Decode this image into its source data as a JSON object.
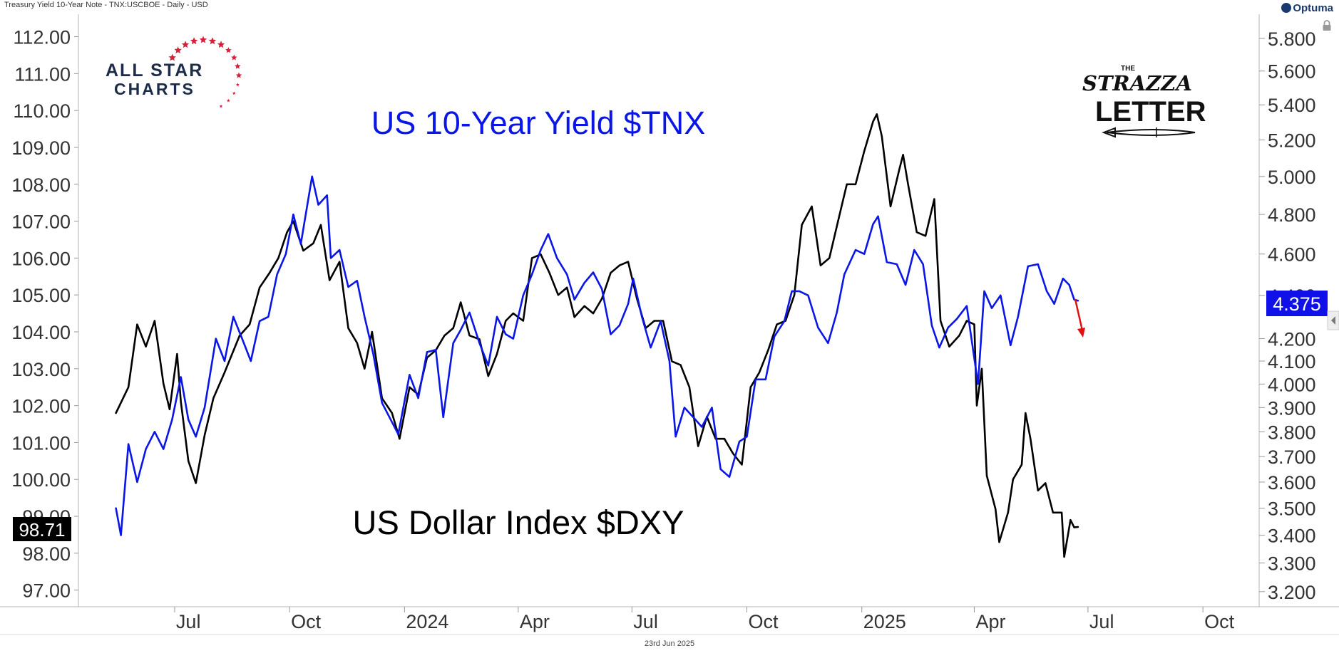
{
  "header": {
    "title": "Treasury Yield 10-Year Note - TNX:USCBOE - Daily - USD",
    "brand": "Optuma"
  },
  "footer": {
    "date": "23rd Jun 2025"
  },
  "logos": {
    "allstar": {
      "line1": "ALL STAR",
      "line2": "CHARTS"
    },
    "strazza": {
      "small": "THE",
      "line1": "STRAZZA",
      "line2": "LETTER"
    }
  },
  "icons": [
    "lock-icon",
    "star-icon",
    "arrow-down-icon",
    "pen-icon",
    "collapse-arrow-icon"
  ],
  "chart_data": {
    "type": "line",
    "annotations": [
      "US 10-Year Yield $TNX",
      "US Dollar Index $DXY"
    ],
    "x_ticks": [
      "Jul",
      "Oct",
      "2024",
      "Apr",
      "Jul",
      "Oct",
      "2025",
      "Apr",
      "Jul",
      "Oct"
    ],
    "x_tick_dates": [
      "2023-07-01",
      "2023-10-01",
      "2024-01-01",
      "2024-04-01",
      "2024-07-01",
      "2024-10-01",
      "2025-01-01",
      "2025-04-01",
      "2025-07-01",
      "2025-10-01"
    ],
    "x_range": [
      "2023-04-15",
      "2025-11-15"
    ],
    "y_left": {
      "ticks": [
        "112.00",
        "111.00",
        "110.00",
        "109.00",
        "108.00",
        "107.00",
        "106.00",
        "105.00",
        "104.00",
        "103.00",
        "102.00",
        "101.00",
        "100.00",
        "99.00",
        "98.00",
        "97.00"
      ],
      "range": [
        96.8,
        112.3
      ],
      "last_value_label": "98.71",
      "last_value": 98.71
    },
    "y_right": {
      "scale": "log",
      "ticks": [
        "5.800",
        "5.600",
        "5.400",
        "5.200",
        "5.000",
        "4.800",
        "4.600",
        "4.400",
        "4.200",
        "4.100",
        "4.000",
        "3.900",
        "3.800",
        "3.700",
        "3.600",
        "3.500",
        "3.400",
        "3.300",
        "3.200"
      ],
      "range": [
        3.18,
        5.88
      ],
      "last_value_label": "4.375",
      "last_value": 4.375
    },
    "series": [
      {
        "name": "US Dollar Index $DXY",
        "axis": "left",
        "color": "#000000",
        "points": [
          [
            "2023-05-15",
            101.8
          ],
          [
            "2023-05-25",
            102.5
          ],
          [
            "2023-06-01",
            104.2
          ],
          [
            "2023-06-08",
            103.6
          ],
          [
            "2023-06-15",
            104.3
          ],
          [
            "2023-06-22",
            102.6
          ],
          [
            "2023-06-27",
            101.9
          ],
          [
            "2023-07-03",
            103.4
          ],
          [
            "2023-07-06",
            102.1
          ],
          [
            "2023-07-12",
            100.5
          ],
          [
            "2023-07-18",
            99.9
          ],
          [
            "2023-07-25",
            101.2
          ],
          [
            "2023-08-01",
            102.2
          ],
          [
            "2023-08-10",
            102.9
          ],
          [
            "2023-08-22",
            103.9
          ],
          [
            "2023-08-30",
            104.2
          ],
          [
            "2023-09-07",
            105.2
          ],
          [
            "2023-09-15",
            105.6
          ],
          [
            "2023-09-22",
            106.0
          ],
          [
            "2023-09-29",
            106.7
          ],
          [
            "2023-10-04",
            107.0
          ],
          [
            "2023-10-12",
            106.2
          ],
          [
            "2023-10-20",
            106.4
          ],
          [
            "2023-10-26",
            106.9
          ],
          [
            "2023-11-02",
            105.4
          ],
          [
            "2023-11-10",
            105.9
          ],
          [
            "2023-11-17",
            104.1
          ],
          [
            "2023-11-24",
            103.7
          ],
          [
            "2023-11-30",
            103.0
          ],
          [
            "2023-12-06",
            104.0
          ],
          [
            "2023-12-14",
            102.2
          ],
          [
            "2023-12-22",
            101.8
          ],
          [
            "2023-12-28",
            101.1
          ],
          [
            "2024-01-05",
            102.5
          ],
          [
            "2024-01-12",
            102.3
          ],
          [
            "2024-01-19",
            103.3
          ],
          [
            "2024-01-26",
            103.5
          ],
          [
            "2024-02-02",
            103.9
          ],
          [
            "2024-02-09",
            104.1
          ],
          [
            "2024-02-15",
            104.8
          ],
          [
            "2024-02-22",
            103.9
          ],
          [
            "2024-03-01",
            103.8
          ],
          [
            "2024-03-08",
            102.8
          ],
          [
            "2024-03-15",
            103.4
          ],
          [
            "2024-03-22",
            104.3
          ],
          [
            "2024-03-28",
            104.5
          ],
          [
            "2024-04-05",
            104.3
          ],
          [
            "2024-04-12",
            106.0
          ],
          [
            "2024-04-19",
            106.1
          ],
          [
            "2024-04-26",
            105.6
          ],
          [
            "2024-05-03",
            105.0
          ],
          [
            "2024-05-10",
            105.2
          ],
          [
            "2024-05-16",
            104.4
          ],
          [
            "2024-05-24",
            104.7
          ],
          [
            "2024-05-31",
            104.5
          ],
          [
            "2024-06-07",
            104.9
          ],
          [
            "2024-06-14",
            105.6
          ],
          [
            "2024-06-21",
            105.8
          ],
          [
            "2024-06-28",
            105.9
          ],
          [
            "2024-07-05",
            104.9
          ],
          [
            "2024-07-12",
            104.1
          ],
          [
            "2024-07-19",
            104.3
          ],
          [
            "2024-07-26",
            104.3
          ],
          [
            "2024-08-02",
            103.2
          ],
          [
            "2024-08-09",
            103.1
          ],
          [
            "2024-08-16",
            102.5
          ],
          [
            "2024-08-23",
            100.9
          ],
          [
            "2024-08-30",
            101.7
          ],
          [
            "2024-09-06",
            101.1
          ],
          [
            "2024-09-13",
            101.1
          ],
          [
            "2024-09-20",
            100.7
          ],
          [
            "2024-09-27",
            100.4
          ],
          [
            "2024-10-04",
            102.5
          ],
          [
            "2024-10-11",
            102.9
          ],
          [
            "2024-10-18",
            103.5
          ],
          [
            "2024-10-25",
            104.2
          ],
          [
            "2024-11-01",
            104.3
          ],
          [
            "2024-11-08",
            105.0
          ],
          [
            "2024-11-14",
            106.9
          ],
          [
            "2024-11-22",
            107.4
          ],
          [
            "2024-11-29",
            105.8
          ],
          [
            "2024-12-06",
            106.0
          ],
          [
            "2024-12-13",
            107.0
          ],
          [
            "2024-12-20",
            108.0
          ],
          [
            "2024-12-27",
            108.0
          ],
          [
            "2025-01-03",
            108.9
          ],
          [
            "2025-01-10",
            109.7
          ],
          [
            "2025-01-13",
            109.9
          ],
          [
            "2025-01-17",
            109.3
          ],
          [
            "2025-01-24",
            107.4
          ],
          [
            "2025-01-31",
            108.4
          ],
          [
            "2025-02-03",
            108.8
          ],
          [
            "2025-02-07",
            108.0
          ],
          [
            "2025-02-14",
            106.7
          ],
          [
            "2025-02-21",
            106.6
          ],
          [
            "2025-02-28",
            107.6
          ],
          [
            "2025-03-05",
            104.3
          ],
          [
            "2025-03-12",
            103.6
          ],
          [
            "2025-03-20",
            103.9
          ],
          [
            "2025-03-26",
            104.3
          ],
          [
            "2025-04-01",
            104.2
          ],
          [
            "2025-04-03",
            102.0
          ],
          [
            "2025-04-07",
            103.0
          ],
          [
            "2025-04-11",
            100.1
          ],
          [
            "2025-04-18",
            99.2
          ],
          [
            "2025-04-21",
            98.3
          ],
          [
            "2025-04-28",
            99.1
          ],
          [
            "2025-05-02",
            100.0
          ],
          [
            "2025-05-09",
            100.4
          ],
          [
            "2025-05-12",
            101.8
          ],
          [
            "2025-05-16",
            101.1
          ],
          [
            "2025-05-22",
            99.7
          ],
          [
            "2025-05-28",
            99.9
          ],
          [
            "2025-06-03",
            99.1
          ],
          [
            "2025-06-10",
            99.1
          ],
          [
            "2025-06-12",
            97.9
          ],
          [
            "2025-06-17",
            98.9
          ],
          [
            "2025-06-20",
            98.7
          ],
          [
            "2025-06-23",
            98.71
          ]
        ]
      },
      {
        "name": "US 10-Year Yield $TNX",
        "axis": "right",
        "color": "#0a16e6",
        "points": [
          [
            "2023-05-15",
            3.5
          ],
          [
            "2023-05-19",
            3.4
          ],
          [
            "2023-05-25",
            3.75
          ],
          [
            "2023-06-01",
            3.6
          ],
          [
            "2023-06-08",
            3.73
          ],
          [
            "2023-06-15",
            3.8
          ],
          [
            "2023-06-22",
            3.73
          ],
          [
            "2023-06-29",
            3.85
          ],
          [
            "2023-07-06",
            4.03
          ],
          [
            "2023-07-12",
            3.85
          ],
          [
            "2023-07-18",
            3.78
          ],
          [
            "2023-07-25",
            3.9
          ],
          [
            "2023-08-03",
            4.2
          ],
          [
            "2023-08-10",
            4.1
          ],
          [
            "2023-08-17",
            4.3
          ],
          [
            "2023-08-24",
            4.2
          ],
          [
            "2023-08-31",
            4.1
          ],
          [
            "2023-09-07",
            4.28
          ],
          [
            "2023-09-14",
            4.3
          ],
          [
            "2023-09-21",
            4.5
          ],
          [
            "2023-09-28",
            4.6
          ],
          [
            "2023-10-04",
            4.8
          ],
          [
            "2023-10-10",
            4.65
          ],
          [
            "2023-10-19",
            5.0
          ],
          [
            "2023-10-24",
            4.85
          ],
          [
            "2023-10-31",
            4.9
          ],
          [
            "2023-11-03",
            4.58
          ],
          [
            "2023-11-10",
            4.62
          ],
          [
            "2023-11-17",
            4.44
          ],
          [
            "2023-11-24",
            4.47
          ],
          [
            "2023-11-30",
            4.3
          ],
          [
            "2023-12-07",
            4.13
          ],
          [
            "2023-12-14",
            3.92
          ],
          [
            "2023-12-27",
            3.79
          ],
          [
            "2024-01-05",
            4.04
          ],
          [
            "2024-01-12",
            3.94
          ],
          [
            "2024-01-19",
            4.14
          ],
          [
            "2024-01-26",
            4.15
          ],
          [
            "2024-02-01",
            3.86
          ],
          [
            "2024-02-09",
            4.18
          ],
          [
            "2024-02-15",
            4.24
          ],
          [
            "2024-02-22",
            4.32
          ],
          [
            "2024-03-01",
            4.18
          ],
          [
            "2024-03-08",
            4.08
          ],
          [
            "2024-03-15",
            4.3
          ],
          [
            "2024-03-22",
            4.22
          ],
          [
            "2024-03-28",
            4.2
          ],
          [
            "2024-04-05",
            4.4
          ],
          [
            "2024-04-12",
            4.5
          ],
          [
            "2024-04-19",
            4.62
          ],
          [
            "2024-04-25",
            4.7
          ],
          [
            "2024-05-02",
            4.58
          ],
          [
            "2024-05-10",
            4.5
          ],
          [
            "2024-05-16",
            4.38
          ],
          [
            "2024-05-24",
            4.46
          ],
          [
            "2024-05-31",
            4.51
          ],
          [
            "2024-06-07",
            4.43
          ],
          [
            "2024-06-14",
            4.22
          ],
          [
            "2024-06-21",
            4.26
          ],
          [
            "2024-06-28",
            4.36
          ],
          [
            "2024-07-02",
            4.48
          ],
          [
            "2024-07-09",
            4.3
          ],
          [
            "2024-07-16",
            4.16
          ],
          [
            "2024-07-24",
            4.28
          ],
          [
            "2024-07-31",
            4.1
          ],
          [
            "2024-08-05",
            3.78
          ],
          [
            "2024-08-12",
            3.9
          ],
          [
            "2024-08-19",
            3.86
          ],
          [
            "2024-08-26",
            3.82
          ],
          [
            "2024-09-03",
            3.9
          ],
          [
            "2024-09-10",
            3.65
          ],
          [
            "2024-09-17",
            3.62
          ],
          [
            "2024-09-25",
            3.76
          ],
          [
            "2024-10-01",
            3.78
          ],
          [
            "2024-10-08",
            4.02
          ],
          [
            "2024-10-16",
            4.02
          ],
          [
            "2024-10-23",
            4.21
          ],
          [
            "2024-10-31",
            4.28
          ],
          [
            "2024-11-06",
            4.42
          ],
          [
            "2024-11-12",
            4.42
          ],
          [
            "2024-11-19",
            4.4
          ],
          [
            "2024-11-27",
            4.25
          ],
          [
            "2024-12-05",
            4.18
          ],
          [
            "2024-12-12",
            4.32
          ],
          [
            "2024-12-18",
            4.5
          ],
          [
            "2024-12-27",
            4.62
          ],
          [
            "2025-01-03",
            4.6
          ],
          [
            "2025-01-10",
            4.75
          ],
          [
            "2025-01-14",
            4.79
          ],
          [
            "2025-01-21",
            4.56
          ],
          [
            "2025-01-29",
            4.55
          ],
          [
            "2025-02-05",
            4.45
          ],
          [
            "2025-02-12",
            4.62
          ],
          [
            "2025-02-19",
            4.55
          ],
          [
            "2025-02-26",
            4.26
          ],
          [
            "2025-03-04",
            4.16
          ],
          [
            "2025-03-11",
            4.25
          ],
          [
            "2025-03-18",
            4.29
          ],
          [
            "2025-03-26",
            4.35
          ],
          [
            "2025-04-04",
            4.0
          ],
          [
            "2025-04-09",
            4.42
          ],
          [
            "2025-04-15",
            4.34
          ],
          [
            "2025-04-22",
            4.4
          ],
          [
            "2025-04-30",
            4.17
          ],
          [
            "2025-05-06",
            4.3
          ],
          [
            "2025-05-14",
            4.54
          ],
          [
            "2025-05-22",
            4.55
          ],
          [
            "2025-05-29",
            4.42
          ],
          [
            "2025-06-04",
            4.36
          ],
          [
            "2025-06-11",
            4.48
          ],
          [
            "2025-06-16",
            4.45
          ],
          [
            "2025-06-20",
            4.38
          ],
          [
            "2025-06-23",
            4.375
          ]
        ]
      }
    ],
    "grid": false,
    "legend": "none"
  }
}
